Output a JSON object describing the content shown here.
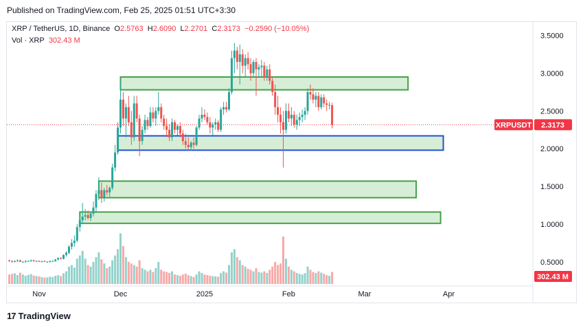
{
  "header": {
    "published": "Published on TradingView.com, Feb 25, 2025 01:51 UTC+3:30"
  },
  "legend": {
    "symbol": "XRP / TetherUS, 1D, Binance",
    "o_label": "O",
    "o_value": "2.5763",
    "h_label": "H",
    "h_value": "2.6090",
    "l_label": "L",
    "l_value": "2.2701",
    "c_label": "C",
    "c_value": "2.3173",
    "change": "−0.2590 (−10.05%)",
    "vol_label": "Vol · XRP",
    "vol_value": "302.43 M"
  },
  "badges": {
    "symbol": "XRPUSDT",
    "price": "2.3173",
    "volume": "302.43 M"
  },
  "footer": {
    "brand": "TradingView"
  },
  "colors": {
    "up": "#26a69a",
    "down": "#ef5350",
    "zone_green": "#43a047",
    "zone_blue": "#1e4fd6",
    "zone_fill": "#d7eed6",
    "badge_red": "#f23645"
  },
  "chart_data": {
    "type": "candlestick",
    "y_ticks": [
      "3.5000",
      "3.0000",
      "2.5000",
      "2.0000",
      "1.5000",
      "1.0000",
      "0.5000"
    ],
    "y_tick_values": [
      3.5,
      3.0,
      2.5,
      2.0,
      1.5,
      1.0,
      0.5
    ],
    "x_ticks": [
      "Nov",
      "Dec",
      "2025",
      "Feb",
      "Mar",
      "Apr"
    ],
    "x_tick_days": [
      0,
      30,
      61,
      92,
      120,
      151
    ],
    "last_price": 2.3173,
    "zones": [
      {
        "color": "green",
        "start_day": 30,
        "end_day": 136,
        "low": 2.78,
        "high": 2.95
      },
      {
        "color": "blue",
        "start_day": 29,
        "end_day": 149,
        "low": 1.98,
        "high": 2.17
      },
      {
        "color": "green",
        "start_day": 22,
        "end_day": 139,
        "low": 1.35,
        "high": 1.57
      },
      {
        "color": "green",
        "start_day": 15,
        "end_day": 148,
        "low": 1.01,
        "high": 1.16
      }
    ],
    "ohlcv": [
      [
        -11,
        0.52,
        0.53,
        0.5,
        0.51,
        30
      ],
      [
        -10,
        0.51,
        0.52,
        0.49,
        0.5,
        32
      ],
      [
        -9,
        0.5,
        0.52,
        0.49,
        0.51,
        34
      ],
      [
        -8,
        0.51,
        0.53,
        0.5,
        0.52,
        28
      ],
      [
        -7,
        0.52,
        0.53,
        0.5,
        0.5,
        36
      ],
      [
        -6,
        0.5,
        0.51,
        0.49,
        0.5,
        30
      ],
      [
        -5,
        0.5,
        0.52,
        0.49,
        0.51,
        26
      ],
      [
        -4,
        0.51,
        0.52,
        0.5,
        0.51,
        29
      ],
      [
        -3,
        0.51,
        0.53,
        0.5,
        0.52,
        31
      ],
      [
        -2,
        0.52,
        0.53,
        0.5,
        0.51,
        27
      ],
      [
        -1,
        0.51,
        0.52,
        0.5,
        0.51,
        25
      ],
      [
        0,
        0.51,
        0.52,
        0.5,
        0.5,
        24
      ],
      [
        1,
        0.5,
        0.51,
        0.49,
        0.51,
        22
      ],
      [
        2,
        0.51,
        0.52,
        0.5,
        0.5,
        20
      ],
      [
        3,
        0.5,
        0.51,
        0.49,
        0.5,
        21
      ],
      [
        4,
        0.5,
        0.52,
        0.49,
        0.51,
        23
      ],
      [
        5,
        0.51,
        0.52,
        0.5,
        0.51,
        22
      ],
      [
        6,
        0.51,
        0.54,
        0.5,
        0.53,
        26
      ],
      [
        7,
        0.53,
        0.56,
        0.52,
        0.55,
        28
      ],
      [
        8,
        0.55,
        0.56,
        0.53,
        0.54,
        25
      ],
      [
        9,
        0.54,
        0.6,
        0.53,
        0.59,
        34
      ],
      [
        10,
        0.59,
        0.64,
        0.57,
        0.62,
        40
      ],
      [
        11,
        0.62,
        0.72,
        0.6,
        0.7,
        55
      ],
      [
        12,
        0.7,
        0.8,
        0.66,
        0.75,
        60
      ],
      [
        13,
        0.75,
        0.85,
        0.7,
        0.78,
        52
      ],
      [
        14,
        0.78,
        1.0,
        0.76,
        0.96,
        80
      ],
      [
        15,
        0.96,
        1.1,
        0.9,
        1.05,
        90
      ],
      [
        16,
        1.05,
        1.28,
        1.0,
        1.1,
        105
      ],
      [
        17,
        1.1,
        1.2,
        1.05,
        1.12,
        80
      ],
      [
        18,
        1.12,
        1.18,
        1.06,
        1.08,
        60
      ],
      [
        19,
        1.08,
        1.15,
        1.04,
        1.14,
        55
      ],
      [
        20,
        1.14,
        1.3,
        1.1,
        1.22,
        70
      ],
      [
        21,
        1.22,
        1.45,
        1.15,
        1.4,
        85
      ],
      [
        22,
        1.4,
        1.62,
        1.32,
        1.45,
        100
      ],
      [
        23,
        1.45,
        1.55,
        1.28,
        1.35,
        78
      ],
      [
        24,
        1.35,
        1.48,
        1.3,
        1.45,
        65
      ],
      [
        25,
        1.45,
        1.52,
        1.38,
        1.42,
        50
      ],
      [
        26,
        1.42,
        1.5,
        1.36,
        1.48,
        55
      ],
      [
        27,
        1.48,
        1.8,
        1.45,
        1.75,
        75
      ],
      [
        28,
        1.75,
        2.05,
        1.7,
        1.95,
        90
      ],
      [
        29,
        1.95,
        2.35,
        1.92,
        2.28,
        110
      ],
      [
        30,
        2.28,
        2.9,
        2.2,
        2.65,
        160
      ],
      [
        31,
        2.65,
        2.75,
        2.3,
        2.4,
        120
      ],
      [
        32,
        2.4,
        2.6,
        2.15,
        2.55,
        85
      ],
      [
        33,
        2.55,
        2.7,
        2.3,
        2.35,
        70
      ],
      [
        34,
        2.35,
        2.5,
        2.05,
        2.15,
        65
      ],
      [
        35,
        2.15,
        2.7,
        2.1,
        2.6,
        60
      ],
      [
        36,
        2.6,
        2.7,
        2.35,
        2.4,
        55
      ],
      [
        37,
        2.4,
        2.45,
        1.9,
        2.1,
        75
      ],
      [
        38,
        2.1,
        2.3,
        2.05,
        2.25,
        50
      ],
      [
        39,
        2.25,
        2.45,
        2.2,
        2.38,
        45
      ],
      [
        40,
        2.38,
        2.42,
        2.25,
        2.3,
        40
      ],
      [
        41,
        2.3,
        2.55,
        2.28,
        2.48,
        45
      ],
      [
        42,
        2.48,
        2.55,
        2.35,
        2.4,
        38
      ],
      [
        43,
        2.4,
        2.55,
        2.3,
        2.5,
        50
      ],
      [
        44,
        2.5,
        2.75,
        2.45,
        2.55,
        70
      ],
      [
        45,
        2.55,
        2.6,
        2.35,
        2.4,
        45
      ],
      [
        46,
        2.4,
        2.45,
        2.25,
        2.3,
        40
      ],
      [
        47,
        2.3,
        2.4,
        2.15,
        2.25,
        38
      ],
      [
        48,
        2.25,
        2.32,
        2.1,
        2.15,
        35
      ],
      [
        49,
        2.15,
        2.4,
        2.1,
        2.35,
        40
      ],
      [
        50,
        2.35,
        2.38,
        2.2,
        2.25,
        30
      ],
      [
        51,
        2.25,
        2.32,
        2.18,
        2.3,
        28
      ],
      [
        52,
        2.3,
        2.35,
        2.15,
        2.2,
        26
      ],
      [
        53,
        2.2,
        2.25,
        2.05,
        2.1,
        30
      ],
      [
        54,
        2.1,
        2.2,
        2.0,
        2.05,
        33
      ],
      [
        55,
        2.05,
        2.15,
        1.98,
        2.02,
        28
      ],
      [
        56,
        2.02,
        2.1,
        1.97,
        2.08,
        25
      ],
      [
        57,
        2.08,
        2.15,
        2.0,
        2.05,
        22
      ],
      [
        58,
        2.05,
        2.3,
        2.03,
        2.28,
        30
      ],
      [
        59,
        2.28,
        2.45,
        2.25,
        2.4,
        40
      ],
      [
        60,
        2.4,
        2.55,
        2.35,
        2.45,
        35
      ],
      [
        61,
        2.45,
        2.52,
        2.38,
        2.42,
        30
      ],
      [
        62,
        2.42,
        2.48,
        2.32,
        2.35,
        28
      ],
      [
        63,
        2.35,
        2.42,
        2.2,
        2.28,
        26
      ],
      [
        64,
        2.28,
        2.35,
        2.18,
        2.32,
        25
      ],
      [
        65,
        2.32,
        2.4,
        2.25,
        2.35,
        24
      ],
      [
        66,
        2.35,
        2.38,
        2.22,
        2.25,
        23
      ],
      [
        67,
        2.25,
        2.55,
        2.22,
        2.52,
        35
      ],
      [
        68,
        2.52,
        2.62,
        2.45,
        2.55,
        40
      ],
      [
        69,
        2.55,
        2.62,
        2.48,
        2.52,
        36
      ],
      [
        70,
        2.52,
        2.8,
        2.5,
        2.75,
        60
      ],
      [
        71,
        2.75,
        3.3,
        2.72,
        3.2,
        100
      ],
      [
        72,
        3.2,
        3.4,
        3.0,
        3.3,
        110
      ],
      [
        73,
        3.3,
        3.35,
        3.05,
        3.15,
        85
      ],
      [
        74,
        3.15,
        3.38,
        2.85,
        3.25,
        75
      ],
      [
        75,
        3.25,
        3.32,
        3.0,
        3.1,
        60
      ],
      [
        76,
        3.1,
        3.25,
        2.95,
        3.2,
        55
      ],
      [
        77,
        3.2,
        3.28,
        3.05,
        3.12,
        48
      ],
      [
        78,
        3.12,
        3.2,
        2.9,
        3.0,
        45
      ],
      [
        79,
        3.0,
        3.18,
        2.95,
        3.15,
        40
      ],
      [
        80,
        3.15,
        3.2,
        2.7,
        3.05,
        50
      ],
      [
        81,
        3.05,
        3.12,
        2.95,
        3.08,
        38
      ],
      [
        82,
        3.08,
        3.18,
        2.95,
        3.1,
        36
      ],
      [
        83,
        3.1,
        3.15,
        2.9,
        2.95,
        40
      ],
      [
        84,
        2.95,
        3.1,
        2.9,
        3.05,
        35
      ],
      [
        85,
        3.05,
        3.12,
        2.85,
        2.9,
        45
      ],
      [
        86,
        2.9,
        2.95,
        2.7,
        2.75,
        55
      ],
      [
        87,
        2.75,
        2.85,
        2.45,
        2.55,
        70
      ],
      [
        88,
        2.55,
        2.7,
        2.35,
        2.45,
        60
      ],
      [
        89,
        2.45,
        2.55,
        2.2,
        2.35,
        65
      ],
      [
        90,
        2.35,
        2.5,
        1.75,
        2.25,
        150
      ],
      [
        91,
        2.25,
        2.6,
        2.2,
        2.5,
        80
      ],
      [
        92,
        2.5,
        2.6,
        2.35,
        2.4,
        55
      ],
      [
        93,
        2.4,
        2.55,
        2.3,
        2.45,
        45
      ],
      [
        94,
        2.45,
        2.5,
        2.28,
        2.32,
        40
      ],
      [
        95,
        2.32,
        2.45,
        2.25,
        2.38,
        35
      ],
      [
        96,
        2.38,
        2.48,
        2.3,
        2.42,
        32
      ],
      [
        97,
        2.42,
        2.52,
        2.35,
        2.45,
        30
      ],
      [
        98,
        2.45,
        2.55,
        2.38,
        2.5,
        34
      ],
      [
        99,
        2.5,
        2.8,
        2.45,
        2.75,
        55
      ],
      [
        100,
        2.75,
        2.85,
        2.65,
        2.72,
        45
      ],
      [
        101,
        2.72,
        2.8,
        2.6,
        2.65,
        38
      ],
      [
        102,
        2.65,
        2.75,
        2.55,
        2.7,
        35
      ],
      [
        103,
        2.7,
        2.75,
        2.5,
        2.55,
        40
      ],
      [
        104,
        2.55,
        2.72,
        2.52,
        2.68,
        36
      ],
      [
        105,
        2.68,
        2.72,
        2.55,
        2.6,
        32
      ],
      [
        106,
        2.6,
        2.65,
        2.5,
        2.58,
        28
      ],
      [
        107,
        2.58,
        2.62,
        2.52,
        2.58,
        26
      ],
      [
        108,
        2.5763,
        2.609,
        2.2701,
        2.3173,
        38
      ]
    ]
  }
}
